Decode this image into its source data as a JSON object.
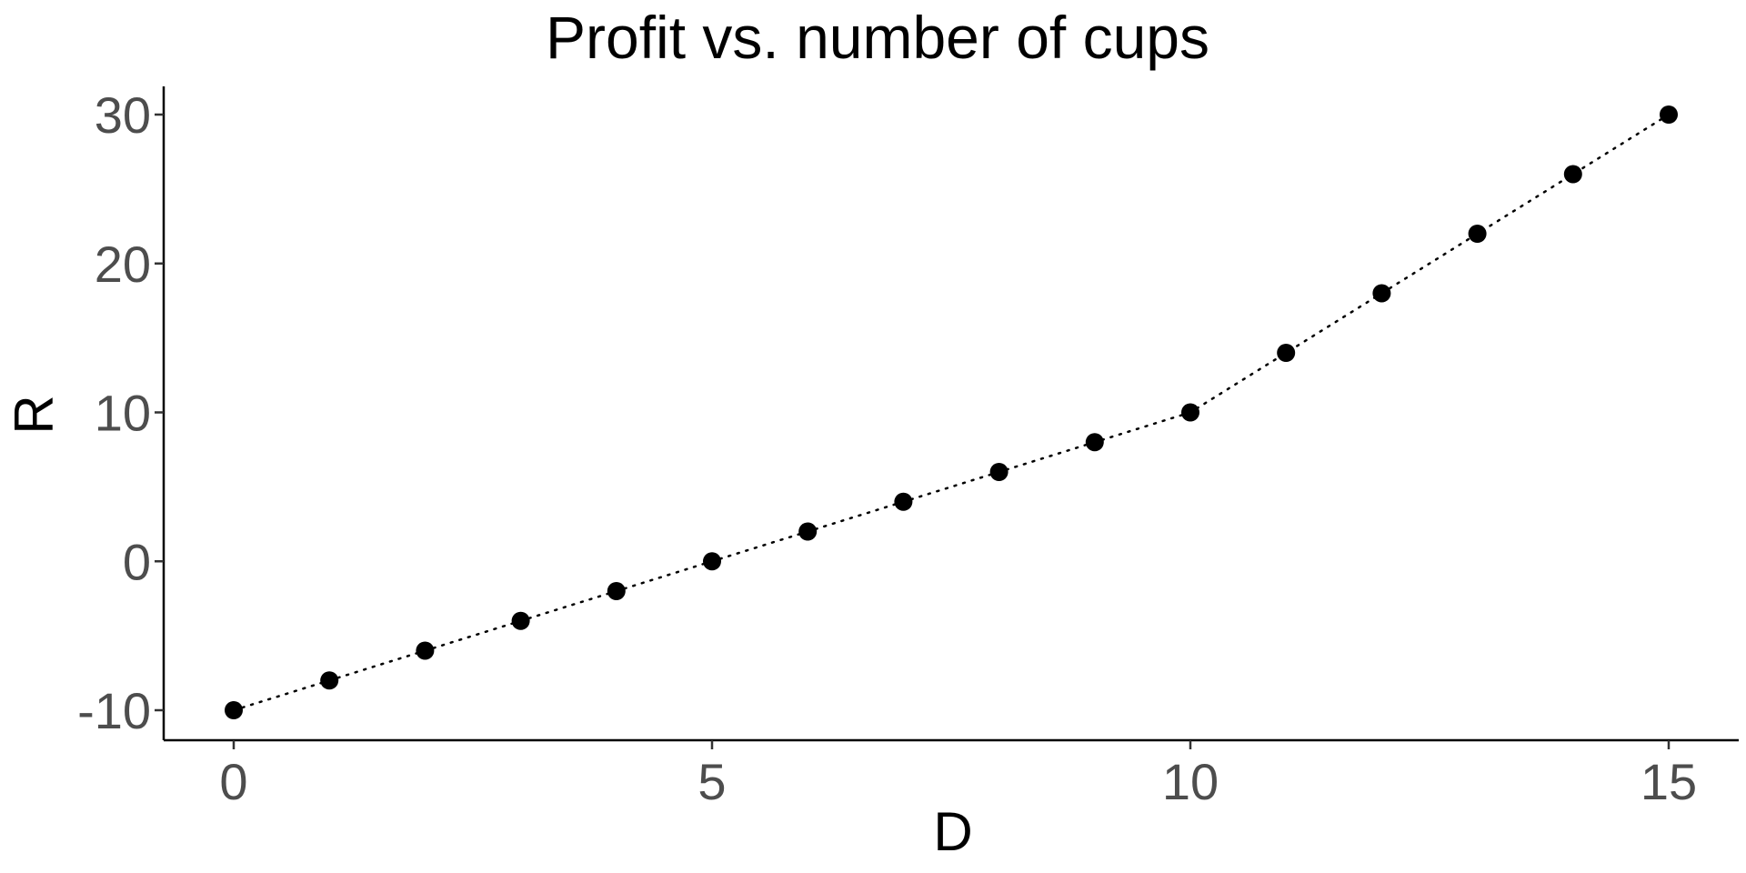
{
  "chart_data": {
    "type": "line",
    "title": "Profit vs. number of cups",
    "xlabel": "D",
    "ylabel": "R",
    "x": [
      0,
      1,
      2,
      3,
      4,
      5,
      6,
      7,
      8,
      9,
      10,
      11,
      12,
      13,
      14,
      15
    ],
    "series": [
      {
        "values": [
          -10,
          -8,
          -6,
          -4,
          -2,
          0,
          2,
          4,
          6,
          8,
          10,
          14,
          18,
          22,
          26,
          30
        ],
        "line_style": "dotted",
        "marker": "filled-circle",
        "color": "#000000"
      }
    ],
    "xlim": [
      -0.75,
      15.75
    ],
    "ylim": [
      -12,
      32
    ],
    "x_ticks": [
      0,
      5,
      10,
      15
    ],
    "x_tick_labels": [
      "0",
      "5",
      "10",
      "15"
    ],
    "y_ticks": [
      -10,
      0,
      10,
      20,
      30
    ],
    "y_tick_labels": [
      "-10",
      "0",
      "10",
      "20",
      "30"
    ],
    "grid": false,
    "legend": "none"
  }
}
